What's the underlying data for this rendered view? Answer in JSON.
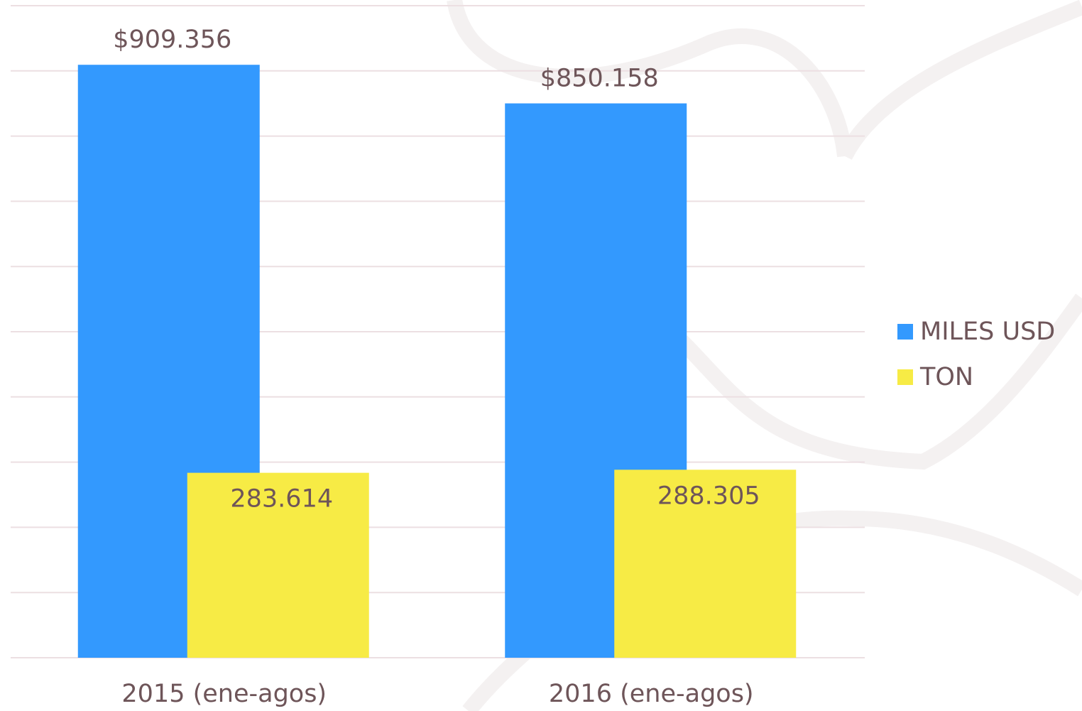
{
  "chart_data": {
    "type": "bar",
    "categories": [
      "2015 (ene-agos)",
      "2016 (ene-agos)"
    ],
    "series": [
      {
        "name": "MILES USD",
        "color": "#3399fe",
        "values": [
          909356,
          850158
        ],
        "value_labels": [
          "$909.356",
          "$850.158"
        ]
      },
      {
        "name": "TON",
        "color": "#f7eb45",
        "values": [
          283614,
          288305
        ],
        "value_labels": [
          "283.614",
          "288.305"
        ]
      }
    ],
    "ylim": [
      0,
      1000000
    ],
    "yticks": [
      0,
      100000,
      200000,
      300000,
      400000,
      500000,
      600000,
      700000,
      800000,
      900000,
      1000000
    ],
    "grid": true,
    "legend": "right"
  }
}
